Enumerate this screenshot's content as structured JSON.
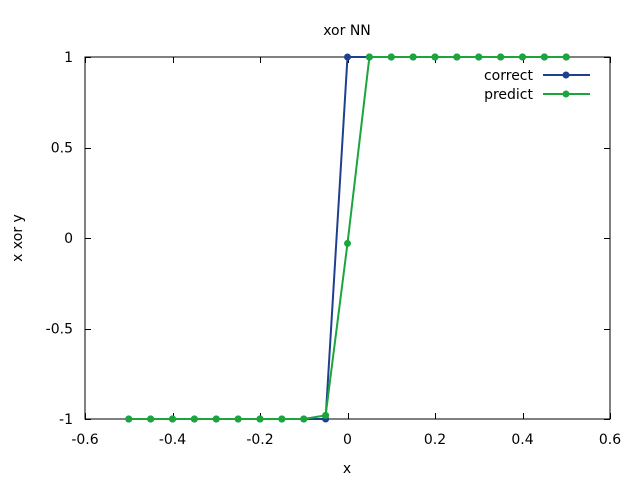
{
  "chart_data": {
    "type": "line",
    "title": "xor NN",
    "xlabel": "x",
    "ylabel": "x xor y",
    "xlim": [
      -0.6,
      0.6
    ],
    "ylim": [
      -1,
      1
    ],
    "xticks": [
      -0.6,
      -0.4,
      -0.2,
      0,
      0.2,
      0.4,
      0.6
    ],
    "xtick_labels": [
      "-0.6",
      "-0.4",
      "-0.2",
      "0",
      "0.2",
      "0.4",
      "0.6"
    ],
    "yticks": [
      -1,
      -0.5,
      0,
      0.5,
      1
    ],
    "ytick_labels": [
      "-1",
      "-0.5",
      "0",
      "0.5",
      "1"
    ],
    "grid": false,
    "legend_position": "top-right",
    "x": [
      -0.5,
      -0.45,
      -0.4,
      -0.35,
      -0.3,
      -0.25,
      -0.2,
      -0.15,
      -0.1,
      -0.05,
      0,
      0.05,
      0.1,
      0.15,
      0.2,
      0.25,
      0.3,
      0.35,
      0.4,
      0.45,
      0.5
    ],
    "series": [
      {
        "name": "correct",
        "color": "#1f3f8f",
        "values": [
          -1,
          -1,
          -1,
          -1,
          -1,
          -1,
          -1,
          -1,
          -1,
          -1,
          1,
          1,
          1,
          1,
          1,
          1,
          1,
          1,
          1,
          1,
          1
        ]
      },
      {
        "name": "predict",
        "color": "#1aa63c",
        "values": [
          -1,
          -1,
          -1,
          -1,
          -1,
          -1,
          -1,
          -1,
          -1,
          -0.98,
          -0.03,
          1,
          1,
          1,
          1,
          1,
          1,
          1,
          1,
          1,
          1
        ]
      }
    ]
  }
}
